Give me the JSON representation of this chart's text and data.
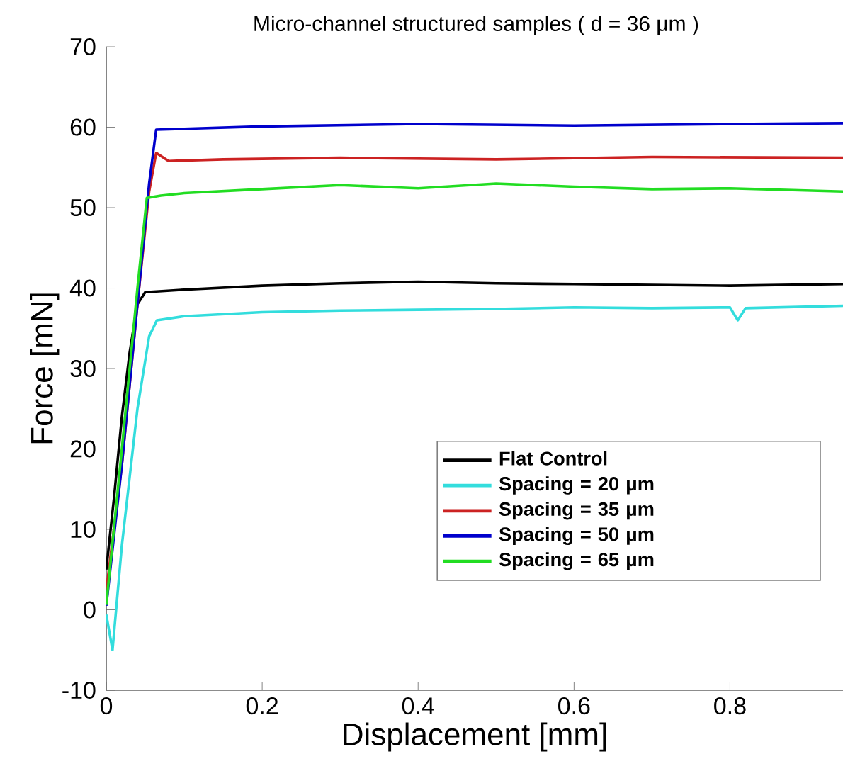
{
  "chart_data": {
    "type": "line",
    "title": "Micro-channel structured samples ( d = 36 μm )",
    "xlabel": "Displacement [mm]",
    "ylabel": "Force [mN]",
    "xlim": [
      0,
      0.945
    ],
    "xticks": [
      0,
      0.2,
      0.4,
      0.6,
      0.8
    ],
    "ylim": [
      -10,
      70
    ],
    "yticks": [
      -10,
      0,
      10,
      20,
      30,
      40,
      50,
      60,
      70
    ],
    "grid": false,
    "legend": "bottom right",
    "marker": "none",
    "line_style": "solid",
    "series": [
      {
        "name": "Flat Control",
        "color": "#000000",
        "x": [
          0,
          0.01,
          0.02,
          0.03,
          0.04,
          0.05,
          0.1,
          0.2,
          0.3,
          0.4,
          0.5,
          0.6,
          0.7,
          0.8,
          0.945
        ],
        "values": [
          5,
          14,
          24,
          32,
          38,
          39.5,
          39.8,
          40.3,
          40.6,
          40.8,
          40.6,
          40.5,
          40.4,
          40.3,
          40.5
        ]
      },
      {
        "name": "Spacing = 20 μm",
        "color": "#33dddd",
        "x": [
          0,
          0.008,
          0.02,
          0.04,
          0.055,
          0.065,
          0.1,
          0.2,
          0.3,
          0.4,
          0.5,
          0.6,
          0.7,
          0.8,
          0.81,
          0.82,
          0.945
        ],
        "values": [
          -0.6,
          -5,
          8,
          25,
          34,
          36,
          36.5,
          37,
          37.2,
          37.3,
          37.4,
          37.6,
          37.5,
          37.6,
          36,
          37.5,
          37.8
        ]
      },
      {
        "name": "Spacing = 35 μm",
        "color": "#cc2222",
        "x": [
          0,
          0.02,
          0.04,
          0.055,
          0.064,
          0.08,
          0.15,
          0.3,
          0.5,
          0.7,
          0.945
        ],
        "values": [
          2.4,
          18,
          38,
          52,
          56.8,
          55.8,
          56,
          56.2,
          56,
          56.3,
          56.2
        ]
      },
      {
        "name": "Spacing = 50 μm",
        "color": "#0000cc",
        "x": [
          0,
          0.02,
          0.04,
          0.055,
          0.064,
          0.1,
          0.2,
          0.4,
          0.6,
          0.8,
          0.945
        ],
        "values": [
          0.5,
          18,
          38,
          53,
          59.7,
          59.8,
          60.1,
          60.4,
          60.2,
          60.4,
          60.5
        ]
      },
      {
        "name": "Spacing = 65 μm",
        "color": "#22dd22",
        "x": [
          0,
          0.02,
          0.04,
          0.052,
          0.07,
          0.1,
          0.2,
          0.3,
          0.4,
          0.5,
          0.6,
          0.7,
          0.8,
          0.945
        ],
        "values": [
          0.6,
          20,
          40,
          51.2,
          51.5,
          51.8,
          52.3,
          52.8,
          52.4,
          53,
          52.6,
          52.3,
          52.4,
          52
        ]
      }
    ]
  }
}
